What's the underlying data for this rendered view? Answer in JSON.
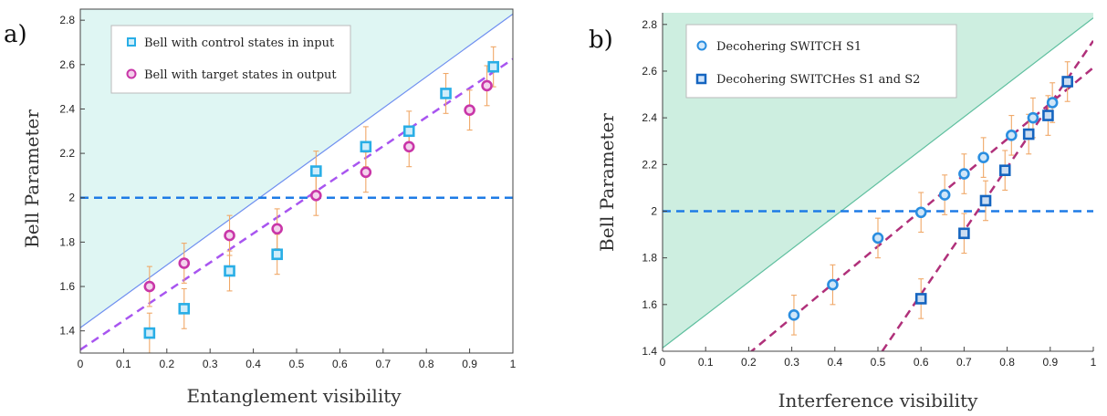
{
  "chart_data": [
    {
      "type": "scatter",
      "panel_label": "a)",
      "xlabel": "Entanglement visibility",
      "ylabel": "Bell Parameter",
      "xlim": [
        0,
        1
      ],
      "ylim": [
        1.3,
        2.85
      ],
      "xticks": [
        "0",
        "0.1",
        "0.2",
        "0.3",
        "0.4",
        "0.5",
        "0.6",
        "0.7",
        "0.8",
        "0.9",
        "1"
      ],
      "yticks": [
        "1.4",
        "1.6",
        "1.8",
        "2",
        "2.2",
        "2.4",
        "2.6",
        "2.8"
      ],
      "legend_position": "top-left",
      "grid": false,
      "shaded_region": {
        "color": "#dff6f3",
        "line": {
          "x": [
            0,
            1
          ],
          "y": [
            1.414,
            2.828
          ]
        }
      },
      "reference_line": {
        "y": 2,
        "color": "#1e7be6"
      },
      "series": [
        {
          "name": "Bell with control states in input",
          "marker": "square",
          "color": "#29aee6",
          "x": [
            0.16,
            0.24,
            0.345,
            0.455,
            0.545,
            0.66,
            0.76,
            0.845,
            0.955
          ],
          "y": [
            1.39,
            1.5,
            1.67,
            1.745,
            2.12,
            2.23,
            2.3,
            2.47,
            2.59
          ],
          "err": [
            0.09,
            0.09,
            0.09,
            0.09,
            0.09,
            0.09,
            0.09,
            0.09,
            0.09
          ]
        },
        {
          "name": "Bell with target states in output",
          "marker": "circle",
          "color": "#c936a8",
          "x": [
            0.16,
            0.24,
            0.345,
            0.455,
            0.545,
            0.66,
            0.76,
            0.9,
            0.94
          ],
          "y": [
            1.6,
            1.705,
            1.83,
            1.86,
            2.01,
            2.115,
            2.23,
            2.395,
            2.505
          ],
          "err": [
            0.09,
            0.09,
            0.09,
            0.09,
            0.09,
            0.09,
            0.09,
            0.09,
            0.09
          ]
        }
      ],
      "fit_lines": [
        {
          "color": "#a855f0",
          "x": [
            0,
            1
          ],
          "y": [
            1.315,
            2.625
          ]
        }
      ]
    },
    {
      "type": "scatter",
      "panel_label": "b)",
      "xlabel": "Interference visibility",
      "ylabel": "Bell Parameter",
      "xlim": [
        0,
        1
      ],
      "ylim": [
        1.4,
        2.85
      ],
      "xticks": [
        "0",
        "0.1",
        "0.2",
        "0.3",
        "0.4",
        "0.5",
        "0.6",
        "0.7",
        "0.8",
        "0.9",
        "1"
      ],
      "yticks": [
        "1.4",
        "1.6",
        "1.8",
        "2",
        "2.2",
        "2.4",
        "2.6",
        "2.8"
      ],
      "legend_position": "top-left",
      "grid": false,
      "shaded_region": {
        "color": "#cdeee0",
        "line": {
          "x": [
            0,
            1
          ],
          "y": [
            1.414,
            2.828
          ]
        }
      },
      "reference_line": {
        "y": 2,
        "color": "#1e7be6"
      },
      "series": [
        {
          "name": "Decohering SWITCH S1",
          "marker": "circle",
          "color": "#2a8ee0",
          "x": [
            0.305,
            0.395,
            0.5,
            0.6,
            0.655,
            0.7,
            0.745,
            0.81,
            0.86,
            0.905
          ],
          "y": [
            1.555,
            1.685,
            1.885,
            1.995,
            2.07,
            2.16,
            2.23,
            2.325,
            2.4,
            2.465
          ],
          "err": [
            0.085,
            0.085,
            0.085,
            0.085,
            0.085,
            0.085,
            0.085,
            0.085,
            0.085,
            0.085
          ]
        },
        {
          "name": "Decohering SWITCHes S1 and S2",
          "marker": "square",
          "color": "#1565c0",
          "x": [
            0.6,
            0.7,
            0.75,
            0.795,
            0.85,
            0.895,
            0.94
          ],
          "y": [
            1.625,
            1.905,
            2.045,
            2.175,
            2.33,
            2.41,
            2.555
          ],
          "err": [
            0.085,
            0.085,
            0.085,
            0.085,
            0.085,
            0.085,
            0.085
          ]
        }
      ],
      "fit_lines": [
        {
          "color": "#b0307a",
          "x": [
            0.2,
            1
          ],
          "y": [
            1.39,
            2.615
          ]
        },
        {
          "color": "#b0307a",
          "x": [
            0.51,
            1
          ],
          "y": [
            1.4,
            2.73
          ]
        }
      ]
    }
  ]
}
